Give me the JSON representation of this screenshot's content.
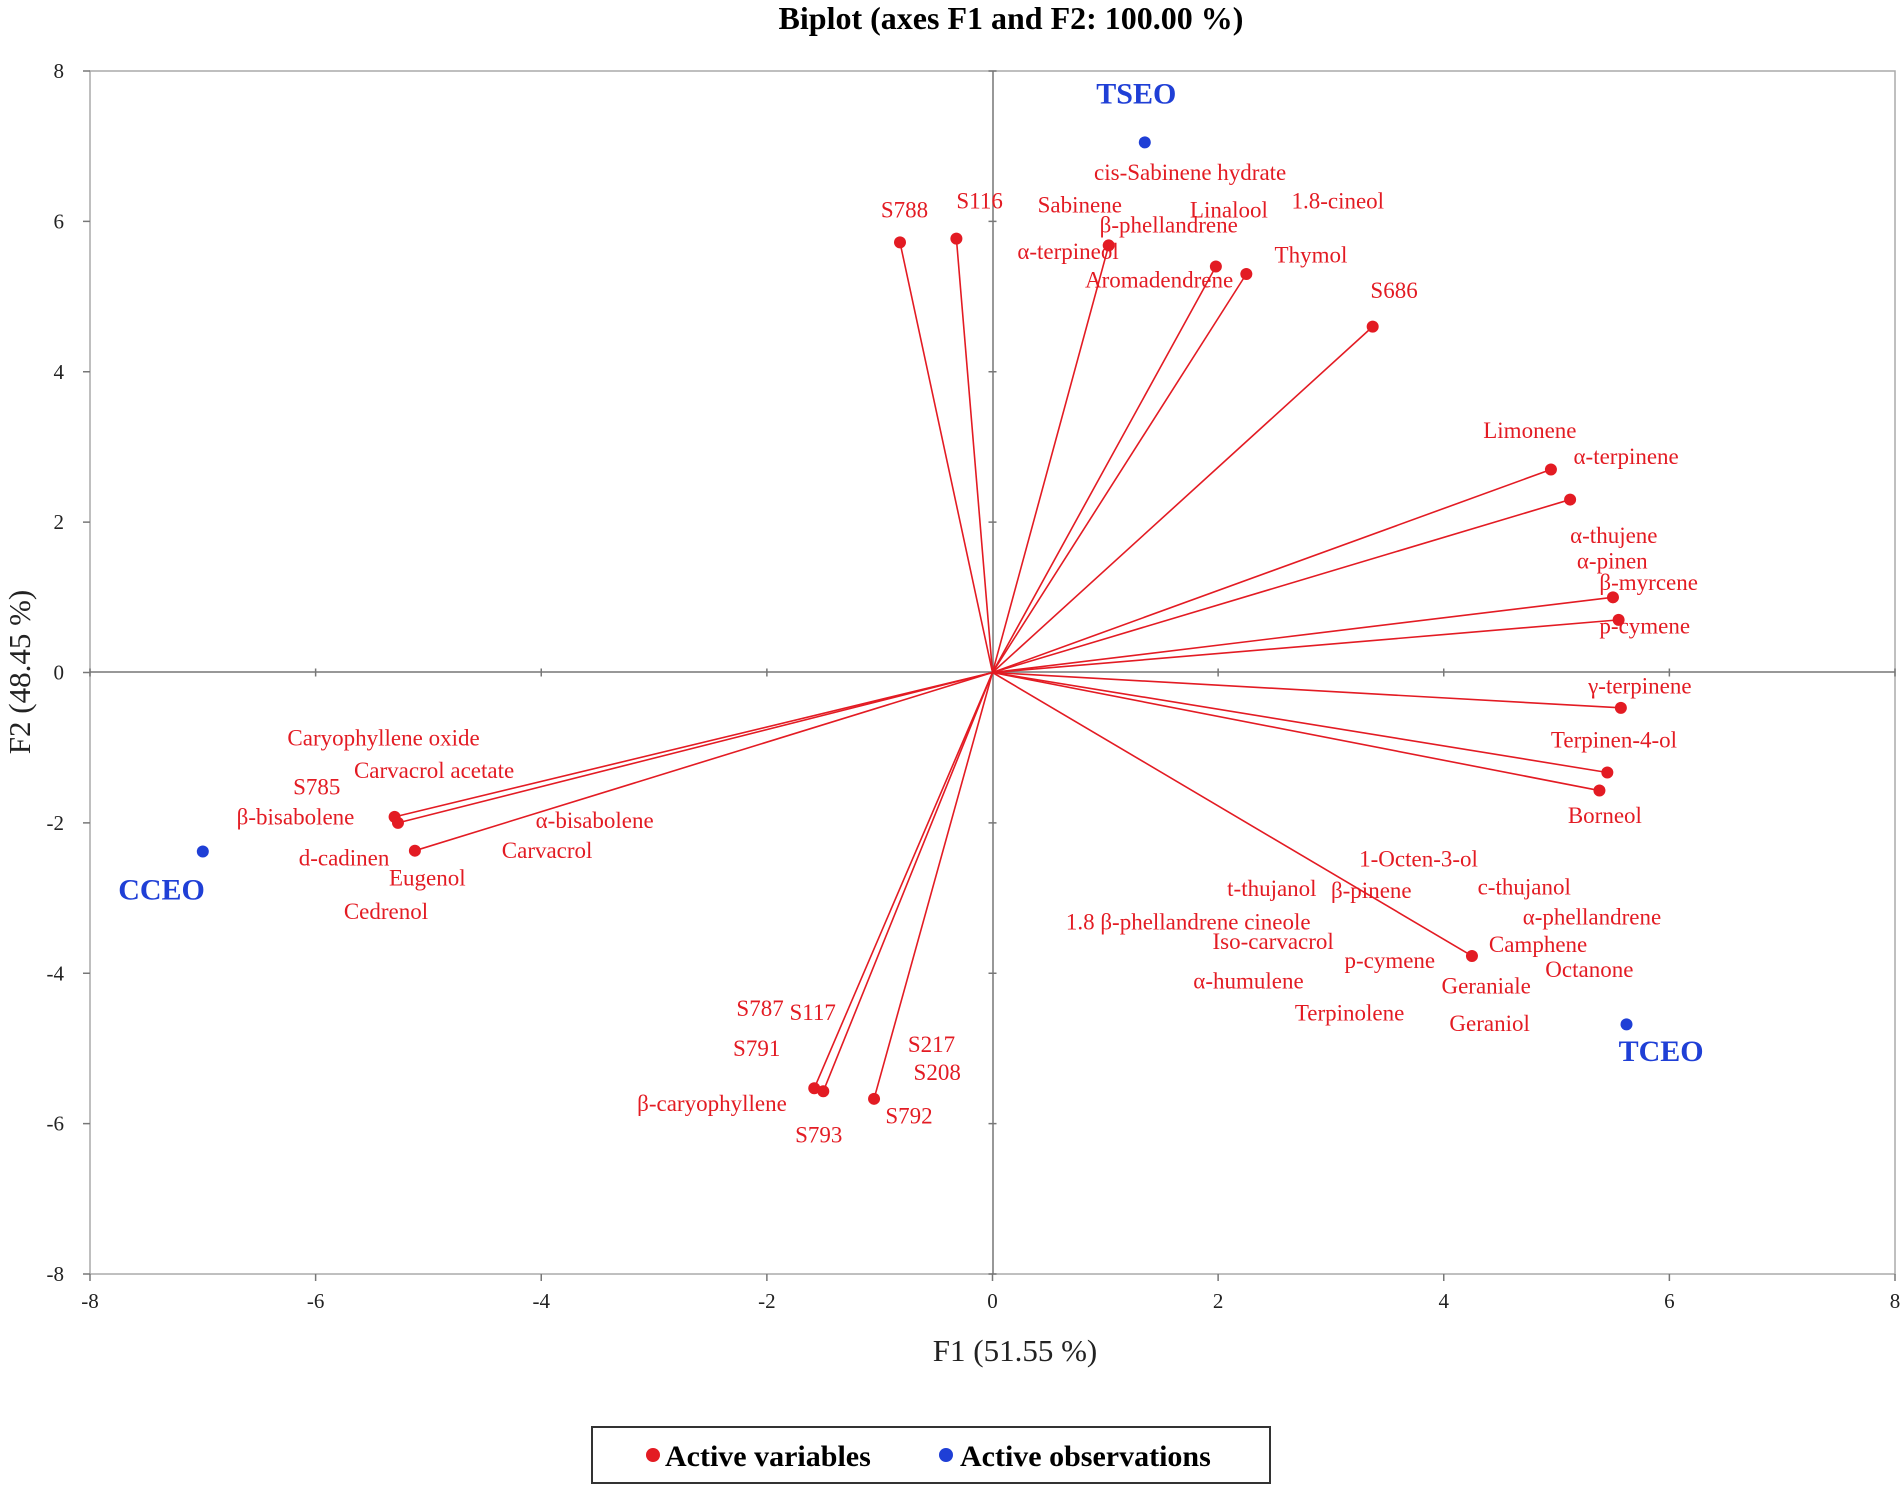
{
  "chart_data": {
    "type": "scatter",
    "subtype": "biplot",
    "title": "Biplot (axes F1 and F2: 100.00 %)",
    "xlabel": "F1 (51.55 %)",
    "ylabel": "F2 (48.45 %)",
    "xlim": [
      -8,
      8
    ],
    "ylim": [
      -8,
      8
    ],
    "xticks": [
      "-8",
      "-6",
      "-4",
      "-2",
      "0",
      "2",
      "4",
      "6",
      "8"
    ],
    "yticks": [
      "8",
      "6",
      "4",
      "2",
      "0",
      "-2",
      "-4",
      "-6",
      "-8"
    ],
    "legend": {
      "position": "bottom",
      "items": [
        {
          "label": "Active variables",
          "color": "#e31b23"
        },
        {
          "label": "Active observations",
          "color": "#1f3fd6"
        }
      ]
    },
    "colors": {
      "variables": "#e31b23",
      "observations": "#1f3fd6"
    },
    "variable_vectors": [
      {
        "x": -0.82,
        "y": 5.72
      },
      {
        "x": -0.32,
        "y": 5.77
      },
      {
        "x": 1.03,
        "y": 5.68
      },
      {
        "x": 1.98,
        "y": 5.4
      },
      {
        "x": 2.25,
        "y": 5.3
      },
      {
        "x": 3.37,
        "y": 4.6
      },
      {
        "x": 4.95,
        "y": 2.7
      },
      {
        "x": 5.12,
        "y": 2.3
      },
      {
        "x": 5.5,
        "y": 1.0
      },
      {
        "x": 5.55,
        "y": 0.7
      },
      {
        "x": 5.57,
        "y": -0.47
      },
      {
        "x": 5.45,
        "y": -1.33
      },
      {
        "x": 5.38,
        "y": -1.57
      },
      {
        "x": 4.25,
        "y": -3.77
      },
      {
        "x": -1.58,
        "y": -5.53
      },
      {
        "x": -1.5,
        "y": -5.57
      },
      {
        "x": -1.05,
        "y": -5.67
      },
      {
        "x": -5.3,
        "y": -1.92
      },
      {
        "x": -5.27,
        "y": -2.0
      },
      {
        "x": -5.12,
        "y": -2.37
      }
    ],
    "variable_labels": [
      {
        "text": "cis-Sabinene hydrate",
        "x": 0.9,
        "y": 6.55
      },
      {
        "text": "S788",
        "x": -0.99,
        "y": 6.05
      },
      {
        "text": "S116",
        "x": -0.32,
        "y": 6.17
      },
      {
        "text": "Sabinene",
        "x": 0.4,
        "y": 6.12
      },
      {
        "text": "Linalool",
        "x": 1.75,
        "y": 6.05
      },
      {
        "text": "1.8-cineol",
        "x": 2.65,
        "y": 6.17
      },
      {
        "text": "β-phellandrene",
        "x": 0.95,
        "y": 5.85
      },
      {
        "text": "α-terpineol",
        "x": 0.22,
        "y": 5.5
      },
      {
        "text": "Thymol",
        "x": 2.5,
        "y": 5.45
      },
      {
        "text": "Aromadendrene",
        "x": 0.82,
        "y": 5.12
      },
      {
        "text": "S686",
        "x": 3.35,
        "y": 4.98
      },
      {
        "text": "Limonene",
        "x": 4.35,
        "y": 3.12
      },
      {
        "text": "α-terpinene",
        "x": 5.15,
        "y": 2.77
      },
      {
        "text": "α-thujene",
        "x": 5.12,
        "y": 1.72
      },
      {
        "text": "α-pinen",
        "x": 5.18,
        "y": 1.38
      },
      {
        "text": "β-myrcene",
        "x": 5.38,
        "y": 1.1
      },
      {
        "text": "p-cymene",
        "x": 5.38,
        "y": 0.52
      },
      {
        "text": "γ-terpinene",
        "x": 5.28,
        "y": -0.28
      },
      {
        "text": "Terpinen-4-ol",
        "x": 4.95,
        "y": -1.0
      },
      {
        "text": "Borneol",
        "x": 5.1,
        "y": -2.0
      },
      {
        "text": "1-Octen-3-ol",
        "x": 3.25,
        "y": -2.58
      },
      {
        "text": "t-thujanol",
        "x": 2.08,
        "y": -2.97
      },
      {
        "text": "β-pinene",
        "x": 3.0,
        "y": -3.0
      },
      {
        "text": "c-thujanol",
        "x": 4.3,
        "y": -2.95
      },
      {
        "text": "α-phellandrene",
        "x": 4.7,
        "y": -3.35
      },
      {
        "text": "1.8 β-phellandrene cineole",
        "x": 0.65,
        "y": -3.42
      },
      {
        "text": "Iso-carvacrol",
        "x": 1.95,
        "y": -3.68
      },
      {
        "text": "Camphene",
        "x": 4.4,
        "y": -3.72
      },
      {
        "text": "p-cymene",
        "x": 3.12,
        "y": -3.93
      },
      {
        "text": "Octanone",
        "x": 4.9,
        "y": -4.05
      },
      {
        "text": "α-humulene",
        "x": 1.78,
        "y": -4.2
      },
      {
        "text": "Geraniale",
        "x": 3.98,
        "y": -4.27
      },
      {
        "text": "Terpinolene",
        "x": 2.68,
        "y": -4.63
      },
      {
        "text": "Geraniol",
        "x": 4.05,
        "y": -4.77
      },
      {
        "text": "Caryophyllene oxide",
        "x": -6.25,
        "y": -0.97
      },
      {
        "text": "Carvacrol acetate",
        "x": -5.66,
        "y": -1.4
      },
      {
        "text": "S785",
        "x": -6.2,
        "y": -1.62
      },
      {
        "text": "β-bisabolene",
        "x": -6.7,
        "y": -2.02
      },
      {
        "text": "α-bisabolene",
        "x": -4.05,
        "y": -2.07
      },
      {
        "text": "d-cadinen",
        "x": -6.15,
        "y": -2.57
      },
      {
        "text": "Carvacrol",
        "x": -4.35,
        "y": -2.47
      },
      {
        "text": "Eugenol",
        "x": -5.35,
        "y": -2.83
      },
      {
        "text": "Cedrenol",
        "x": -5.75,
        "y": -3.28
      },
      {
        "text": "S787",
        "x": -2.27,
        "y": -4.57
      },
      {
        "text": "S117",
        "x": -1.8,
        "y": -4.62
      },
      {
        "text": "S791",
        "x": -2.3,
        "y": -5.1
      },
      {
        "text": "S217",
        "x": -0.75,
        "y": -5.05
      },
      {
        "text": "S208",
        "x": -0.7,
        "y": -5.42
      },
      {
        "text": "β-caryophyllene",
        "x": -3.15,
        "y": -5.83
      },
      {
        "text": "S792",
        "x": -0.95,
        "y": -6.0
      },
      {
        "text": "S793",
        "x": -1.75,
        "y": -6.25
      }
    ],
    "observations": [
      {
        "label": "TSEO",
        "x": 1.35,
        "y": 7.05,
        "label_x": 0.92,
        "label_y": 7.57
      },
      {
        "label": "CCEO",
        "x": -7.0,
        "y": -2.38,
        "label_x": -7.75,
        "label_y": -3.02
      },
      {
        "label": "TCEO",
        "x": 5.62,
        "y": -4.68,
        "label_x": 5.55,
        "label_y": -5.17
      }
    ]
  }
}
